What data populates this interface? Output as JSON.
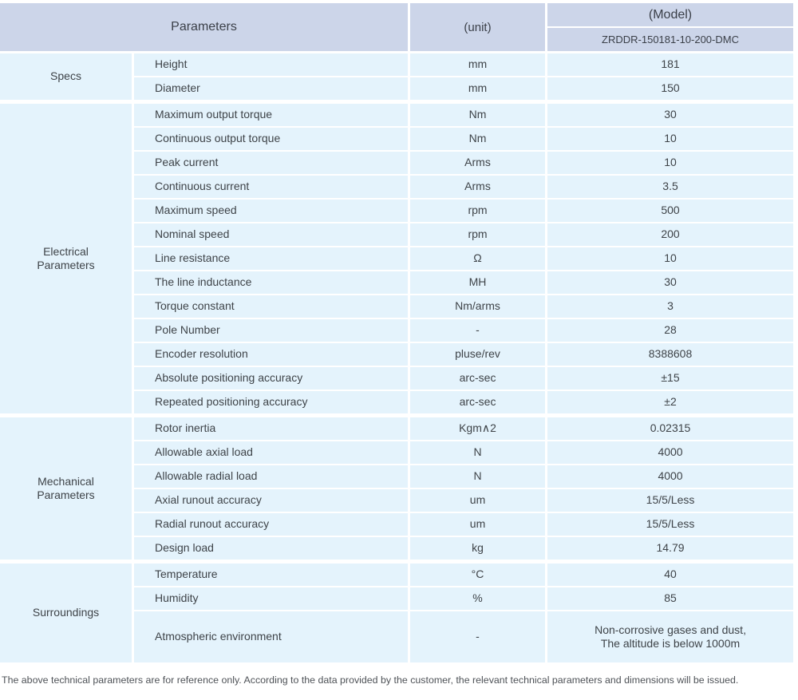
{
  "colors": {
    "header_bg": "#ccd5e9",
    "cell_bg": "#e4f3fc",
    "gridline": "#ffffff",
    "text": "#3e4348"
  },
  "header": {
    "parameters_label": "Parameters",
    "unit_label": "(unit)",
    "model_label": "(Model)",
    "model_value": "ZRDDR-150181-10-200-DMC"
  },
  "sections": [
    {
      "name": "Specs",
      "rows": [
        {
          "parameter": "Height",
          "unit": "mm",
          "value": "181"
        },
        {
          "parameter": "Diameter",
          "unit": "mm",
          "value": "150"
        }
      ]
    },
    {
      "name": "Electrical\nParameters",
      "rows": [
        {
          "parameter": "Maximum output torque",
          "unit": "Nm",
          "value": "30"
        },
        {
          "parameter": "Continuous output torque",
          "unit": "Nm",
          "value": "10"
        },
        {
          "parameter": "Peak current",
          "unit": "Arms",
          "value": "10"
        },
        {
          "parameter": "Continuous current",
          "unit": "Arms",
          "value": "3.5"
        },
        {
          "parameter": "Maximum speed",
          "unit": "rpm",
          "value": "500"
        },
        {
          "parameter": "Nominal speed",
          "unit": "rpm",
          "value": "200"
        },
        {
          "parameter": "Line resistance",
          "unit": "Ω",
          "value": "10"
        },
        {
          "parameter": "The line inductance",
          "unit": "MH",
          "value": "30"
        },
        {
          "parameter": "Torque constant",
          "unit": "Nm/arms",
          "value": "3"
        },
        {
          "parameter": "Pole Number",
          "unit": "-",
          "value": "28"
        },
        {
          "parameter": "Encoder resolution",
          "unit": "pluse/rev",
          "value": "8388608"
        },
        {
          "parameter": "Absolute positioning accuracy",
          "unit": "arc-sec",
          "value": "±15"
        },
        {
          "parameter": "Repeated positioning accuracy",
          "unit": "arc-sec",
          "value": "±2"
        }
      ]
    },
    {
      "name": "Mechanical\nParameters",
      "rows": [
        {
          "parameter": "Rotor inertia",
          "unit": "Kgm∧2",
          "value": "0.02315"
        },
        {
          "parameter": "Allowable axial load",
          "unit": "N",
          "value": "4000"
        },
        {
          "parameter": "Allowable radial load",
          "unit": "N",
          "value": "4000"
        },
        {
          "parameter": "Axial runout accuracy",
          "unit": "um",
          "value": "15/5/Less"
        },
        {
          "parameter": "Radial runout accuracy",
          "unit": "um",
          "value": "15/5/Less"
        },
        {
          "parameter": "Design load",
          "unit": "kg",
          "value": "14.79"
        }
      ]
    },
    {
      "name": "Surroundings",
      "rows": [
        {
          "parameter": "Temperature",
          "unit": "°C",
          "value": "40"
        },
        {
          "parameter": "Humidity",
          "unit": "%",
          "value": "85"
        },
        {
          "parameter": "Atmospheric environment",
          "unit": "-",
          "value": "Non-corrosive gases and dust,\nThe altitude is below 1000m",
          "tall": true
        }
      ]
    }
  ],
  "footer": {
    "note": "The above technical parameters are for reference only. According to the data provided by the customer, the relevant technical parameters and dimensions will be issued."
  }
}
